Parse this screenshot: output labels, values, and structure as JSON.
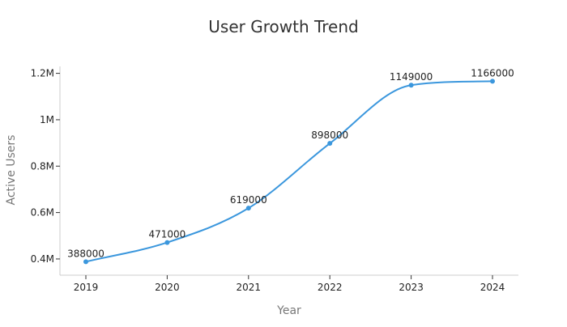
{
  "chart_data": {
    "type": "line",
    "title": "User Growth Trend",
    "xlabel": "Year",
    "ylabel": "Active Users",
    "categories": [
      "2019",
      "2020",
      "2021",
      "2022",
      "2023",
      "2024"
    ],
    "series": [
      {
        "values": [
          388000,
          471000,
          619000,
          898000,
          1149000,
          1166000
        ],
        "data_labels": [
          "388000",
          "471000",
          "619000",
          "898000",
          "1149000",
          "1166000"
        ]
      }
    ],
    "y_ticks": [
      400000,
      600000,
      800000,
      1000000,
      1200000
    ],
    "y_tick_labels": [
      "0.4M",
      "0.6M",
      "0.8M",
      "1M",
      "1.2M"
    ],
    "ylim": [
      330000,
      1230000
    ],
    "grid": false,
    "legend": "none",
    "line_color": "#3b97dd",
    "smooth": true
  }
}
